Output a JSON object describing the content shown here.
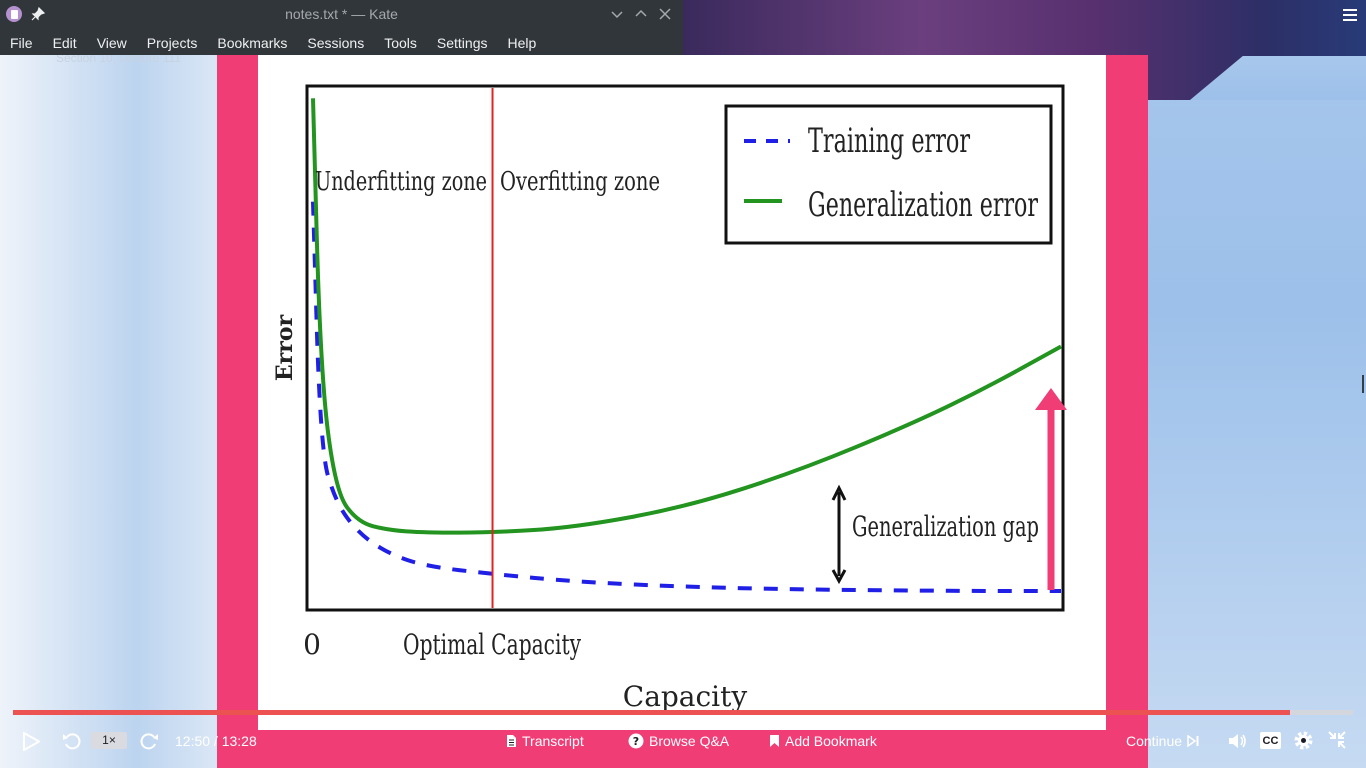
{
  "kate": {
    "title": "notes.txt * — Kate",
    "menu": [
      "File",
      "Edit",
      "View",
      "Projects",
      "Bookmarks",
      "Sessions",
      "Tools",
      "Settings",
      "Help"
    ]
  },
  "course": {
    "section_label": "Section 10, Lecture 111"
  },
  "chart_data": {
    "type": "line",
    "title": "",
    "xlabel": "Capacity",
    "ylabel": "Error",
    "x_ticks": [
      "0",
      "Optimal Capacity"
    ],
    "series": [
      {
        "name": "Training error",
        "style": "dashed",
        "color": "#1f1fe6",
        "x": [
          0.0,
          0.01,
          0.03,
          0.06,
          0.1,
          0.15,
          0.24,
          0.35,
          0.5,
          0.65,
          0.8,
          0.9,
          1.0
        ],
        "y": [
          0.78,
          0.3,
          0.2,
          0.14,
          0.1,
          0.075,
          0.06,
          0.045,
          0.035,
          0.03,
          0.028,
          0.027,
          0.027
        ]
      },
      {
        "name": "Generalization error",
        "style": "solid",
        "color": "#22941f",
        "x": [
          0.0,
          0.01,
          0.03,
          0.06,
          0.1,
          0.15,
          0.24,
          0.35,
          0.5,
          0.65,
          0.8,
          0.9,
          1.0
        ],
        "y": [
          0.98,
          0.45,
          0.22,
          0.16,
          0.145,
          0.14,
          0.14,
          0.15,
          0.19,
          0.26,
          0.35,
          0.42,
          0.5
        ]
      }
    ],
    "optimal_capacity_x": 0.24,
    "annotations": [
      "Underfitting zone",
      "Overfitting zone",
      "Generalization gap"
    ],
    "legend_position": "top-right",
    "xlim": [
      0,
      1
    ],
    "ylim": [
      0,
      1
    ]
  },
  "player": {
    "speed": "1×",
    "time": "12:50 / 13:28",
    "progress": 0.953,
    "transcript": "Transcript",
    "browse_qa": "Browse Q&A",
    "add_bookmark": "Add Bookmark",
    "continue": "Continue",
    "cc": "CC"
  },
  "colors": {
    "frame": "#f03d76",
    "progress": "#ec5252",
    "kate_bg": "#31363b",
    "threshold": "#e02424",
    "gap_arrow": "#f03d76"
  }
}
